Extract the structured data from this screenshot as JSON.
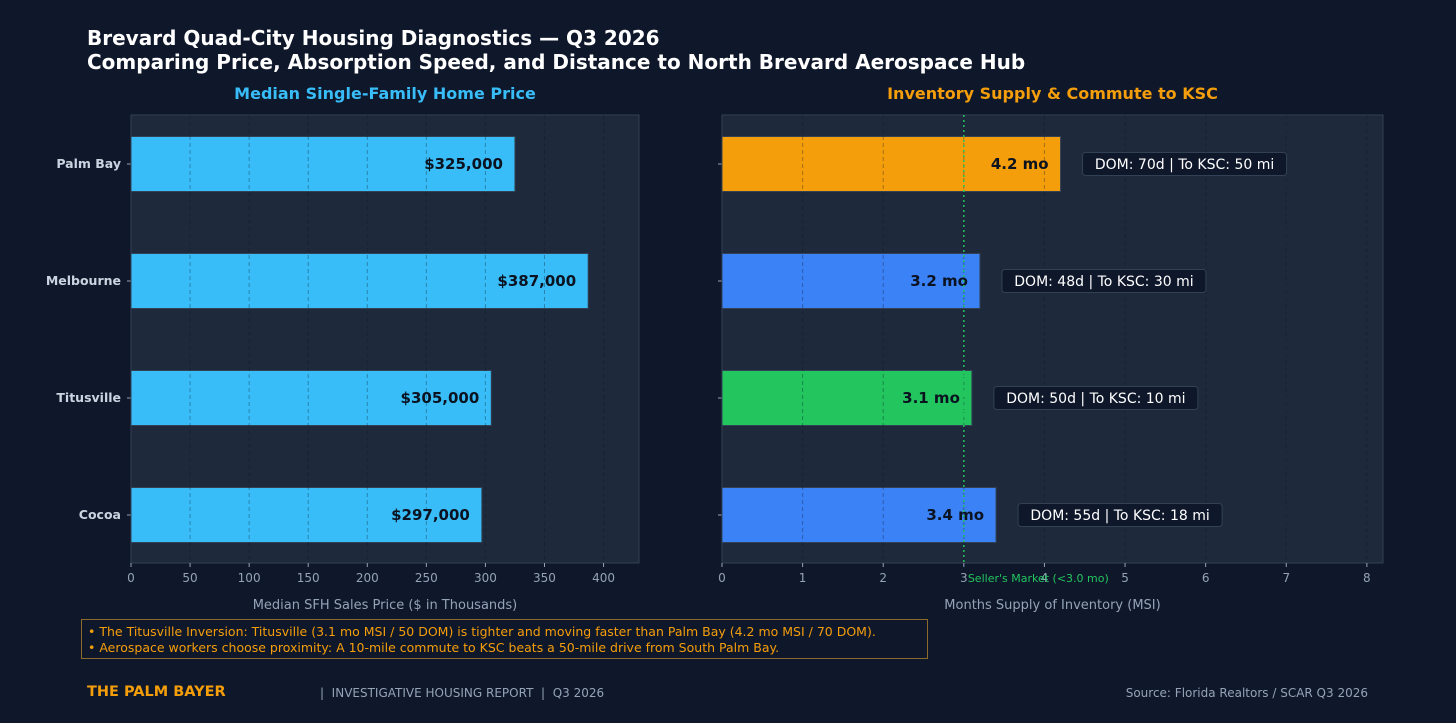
{
  "header": {
    "title_line1": "Brevard Quad-City Housing Diagnostics — Q3 2026",
    "title_line2": "Comparing Price, Absorption Speed, and Distance to North Brevard Aerospace Hub"
  },
  "chart_data": [
    {
      "type": "bar",
      "orientation": "horizontal",
      "title": "Median Single-Family Home Price",
      "title_color": "#38bdf8",
      "categories": [
        "Palm Bay",
        "Melbourne",
        "Titusville",
        "Cocoa"
      ],
      "values": [
        325,
        387,
        305,
        297
      ],
      "data_labels": [
        "$325,000",
        "$387,000",
        "$305,000",
        "$297,000"
      ],
      "bar_color": "#38bdf8",
      "xlabel": "Median SFH Sales Price ($ in Thousands)",
      "xticks": [
        0,
        50,
        100,
        150,
        200,
        250,
        300,
        350,
        400
      ],
      "xlim": [
        0,
        430
      ],
      "grid": true
    },
    {
      "type": "bar",
      "orientation": "horizontal",
      "title": "Inventory Supply & Commute to KSC",
      "title_color": "#f59e0b",
      "categories": [
        "Palm Bay",
        "Melbourne",
        "Titusville",
        "Cocoa"
      ],
      "values": [
        4.2,
        3.2,
        3.1,
        3.4
      ],
      "data_labels": [
        "4.2 mo",
        "3.2 mo",
        "3.1 mo",
        "3.4 mo"
      ],
      "bar_colors": [
        "#f59e0b",
        "#3b82f6",
        "#22c55e",
        "#3b82f6"
      ],
      "annotations": [
        "DOM: 70d  |  To KSC: 50 mi",
        "DOM: 48d  |  To KSC: 30 mi",
        "DOM: 50d  |  To KSC: 10 mi",
        "DOM: 55d  |  To KSC: 18 mi"
      ],
      "xlabel": "Months Supply of Inventory (MSI)",
      "xticks": [
        0,
        1,
        2,
        3,
        4,
        5,
        6,
        7,
        8
      ],
      "xlim": [
        0,
        8.2
      ],
      "reference_line": {
        "value": 3.0,
        "label": "Seller's Market (<3.0 mo)",
        "color": "#22c55e"
      },
      "grid": true
    }
  ],
  "notes": [
    "• The Titusville Inversion: Titusville (3.1 mo MSI / 50 DOM) is tighter and moving faster than Palm Bay (4.2 mo MSI / 70 DOM).",
    "• Aerospace workers choose proximity: A 10-mile commute to KSC beats a 50-mile drive from South Palm Bay."
  ],
  "footer": {
    "brand": "THE PALM BAYER",
    "tagline": "|  INVESTIGATIVE HOUSING REPORT  |  Q3 2026",
    "source": "Source: Florida Realtors / SCAR Q3 2026"
  }
}
